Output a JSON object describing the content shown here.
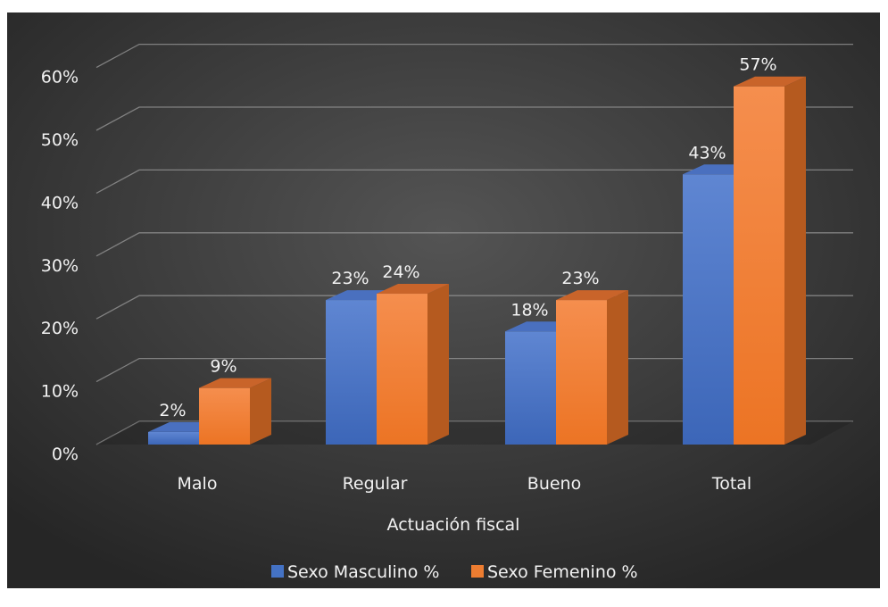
{
  "chart_data": {
    "type": "bar",
    "title": "",
    "xlabel": "Actuación fiscal",
    "ylabel": "",
    "categories": [
      "Malo",
      "Regular",
      "Bueno",
      "Total"
    ],
    "series": [
      {
        "name": "Sexo Masculino %",
        "values": [
          2,
          23,
          18,
          43
        ],
        "labels": [
          "2%",
          "23%",
          "18%",
          "43%"
        ]
      },
      {
        "name": "Sexo Femenino %",
        "values": [
          9,
          24,
          23,
          57
        ],
        "labels": [
          "9%",
          "24%",
          "23%",
          "57%"
        ]
      }
    ],
    "ylim": [
      0,
      60
    ],
    "yticks": [
      "0%",
      "10%",
      "20%",
      "30%",
      "40%",
      "50%",
      "60%"
    ],
    "grid": true,
    "legend_position": "bottom",
    "colors": {
      "masculino": "#4472c4",
      "femenino": "#ed7d31",
      "background": "#3a3a3a",
      "text": "#f2f2f2",
      "grid": "#9a9a9a"
    }
  }
}
